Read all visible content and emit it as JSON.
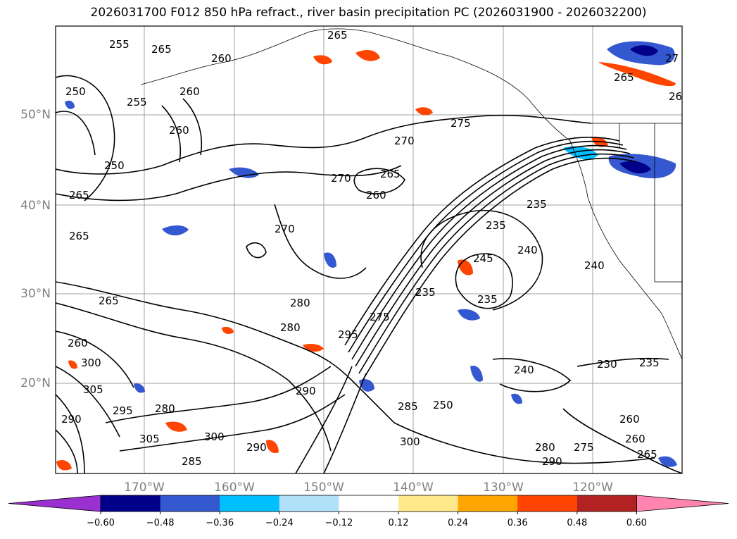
{
  "title": "2026031700 F012 850 hPa refract., river basin precipitation PC (2026031900 - 2026032200)",
  "map": {
    "lat_labels": [
      "50°N",
      "40°N",
      "30°N",
      "20°N"
    ],
    "lon_labels": [
      "170°W",
      "160°W",
      "150°W",
      "140°W",
      "130°W",
      "120°W"
    ],
    "grid": true,
    "contour_labels": [
      "255",
      "265",
      "260",
      "265",
      "250",
      "255",
      "260",
      "260",
      "250",
      "265",
      "265",
      "270",
      "275",
      "270",
      "265",
      "260",
      "270",
      "235",
      "235",
      "245",
      "240",
      "240",
      "235",
      "235",
      "265",
      "280",
      "280",
      "295",
      "275",
      "300",
      "305",
      "295",
      "280",
      "290",
      "290",
      "285",
      "250",
      "240",
      "230",
      "235",
      "305",
      "300",
      "290",
      "300",
      "285",
      "260",
      "260",
      "265",
      "280",
      "275",
      "290",
      "260",
      "27",
      "265",
      "26"
    ]
  },
  "colorbar": {
    "colors": [
      "#9b30d0",
      "#00008b",
      "#3458d0",
      "#00bfff",
      "#b0e0f8",
      "#ffffff",
      "#ffe88a",
      "#ffa500",
      "#ff4500",
      "#b22222",
      "#ff85b0"
    ],
    "ticks": [
      "−0.60",
      "−0.48",
      "−0.36",
      "−0.24",
      "−0.12",
      "0.12",
      "0.24",
      "0.36",
      "0.48",
      "0.60"
    ]
  }
}
